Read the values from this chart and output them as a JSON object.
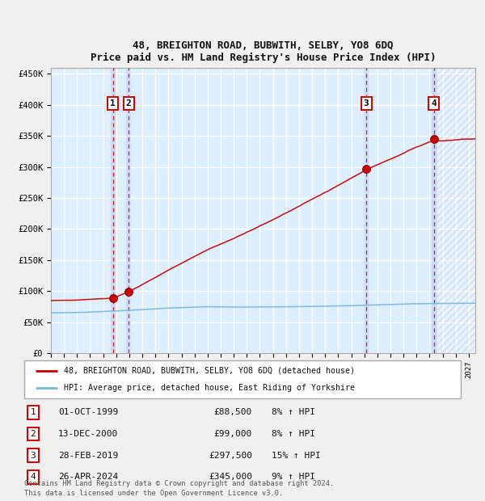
{
  "title": "48, BREIGHTON ROAD, BUBWITH, SELBY, YO8 6DQ",
  "subtitle": "Price paid vs. HM Land Registry's House Price Index (HPI)",
  "xlim_start": 1995.0,
  "xlim_end": 2027.5,
  "ylim": [
    0,
    460000
  ],
  "yticks": [
    0,
    50000,
    100000,
    150000,
    200000,
    250000,
    300000,
    350000,
    400000,
    450000
  ],
  "transactions": [
    {
      "num": 1,
      "date": "01-OCT-1999",
      "year": 1999.75,
      "price": 88500,
      "pct": "8%",
      "dir": "↑"
    },
    {
      "num": 2,
      "date": "13-DEC-2000",
      "year": 2000.95,
      "price": 99000,
      "pct": "8%",
      "dir": "↑"
    },
    {
      "num": 3,
      "date": "28-FEB-2019",
      "year": 2019.15,
      "price": 297500,
      "pct": "15%",
      "dir": "↑"
    },
    {
      "num": 4,
      "date": "26-APR-2024",
      "year": 2024.32,
      "price": 345000,
      "pct": "9%",
      "dir": "↑"
    }
  ],
  "legend_line1": "48, BREIGHTON ROAD, BUBWITH, SELBY, YO8 6DQ (detached house)",
  "legend_line2": "HPI: Average price, detached house, East Riding of Yorkshire",
  "footer": "Contains HM Land Registry data © Crown copyright and database right 2024.\nThis data is licensed under the Open Government Licence v3.0.",
  "hpi_color": "#7ab8d9",
  "price_color": "#cc0000",
  "bg_color": "#ddeeff",
  "fig_color": "#f0f0f0",
  "grid_color": "#ffffff",
  "sale_vline_color": "#cc0000",
  "label_box_color": "#cc0000",
  "future_start": 2024.5
}
